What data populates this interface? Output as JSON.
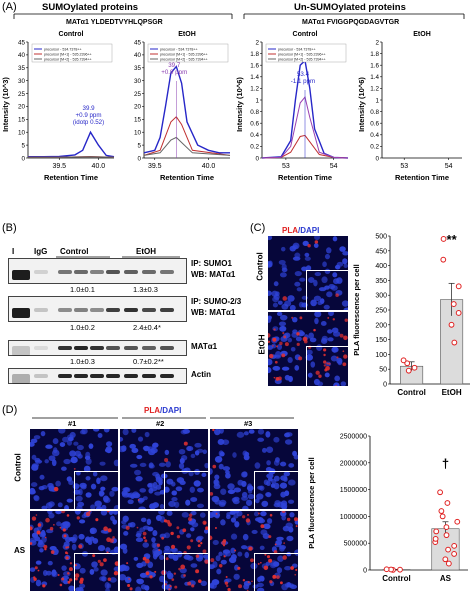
{
  "panel_A": {
    "letter": "(A)",
    "group_sumo": "SUMOylated proteins",
    "group_unsumo": "Un-SUMOylated proteins",
    "peptide_sumo": "MATα1 YLDEDTVYHLQPSGR",
    "peptide_unsumo": "MATα1 FVIGGPQGDAGVTGR",
    "ylabel_e3": "Intensity (10^3)",
    "ylabel_e6": "Intensity (10^6)",
    "xlabel": "Retention Time",
    "legend": [
      "precursor - 534.7378++",
      "precursor [M+1] - 535.2396++",
      "precursor [M+2] - 535.7394++"
    ],
    "chart_data": [
      {
        "type": "line",
        "title": "Control",
        "xlim": [
          39.1,
          40.2
        ],
        "ylim": [
          0,
          45
        ],
        "xticks": [
          "39.5",
          "40.0"
        ],
        "yticks": [
          "0",
          "5",
          "10",
          "15",
          "20",
          "25",
          "30",
          "35",
          "40",
          "45"
        ],
        "annotation": [
          "39.9",
          "+0.9 ppm",
          "(idotp 0.52)"
        ],
        "series": [
          {
            "color": "#2727c8",
            "x": [
              39.1,
              39.3,
              39.5,
              39.7,
              39.8,
              39.9,
              40.0,
              40.1,
              40.2
            ],
            "y": [
              0.5,
              0.5,
              0.6,
              1.2,
              3.0,
              10.0,
              5.0,
              1.0,
              0.5
            ]
          },
          {
            "color": "#c03030",
            "x": [
              39.1,
              39.5,
              39.9,
              40.2
            ],
            "y": [
              0.3,
              0.3,
              0.6,
              0.3
            ]
          },
          {
            "color": "#666666",
            "x": [
              39.1,
              39.5,
              39.9,
              40.2
            ],
            "y": [
              0.3,
              0.3,
              0.5,
              0.3
            ]
          }
        ]
      },
      {
        "type": "line",
        "title": "EtOH",
        "xlim": [
          39.4,
          40.2
        ],
        "ylim": [
          0,
          45
        ],
        "xticks": [
          "39.5",
          "40.0"
        ],
        "yticks": [
          "0",
          "5",
          "10",
          "15",
          "20",
          "25",
          "30",
          "35",
          "40",
          "45"
        ],
        "annotation": [
          "39.7",
          "+0.9 ppm"
        ],
        "series": [
          {
            "color": "#2727c8",
            "x": [
              39.4,
              39.5,
              39.55,
              39.6,
              39.65,
              39.7,
              39.75,
              39.8,
              39.9,
              40.0,
              40.1,
              40.2
            ],
            "y": [
              2,
              3,
              8,
              20,
              33,
              35.5,
              29,
              14,
              5,
              3,
              2,
              2
            ]
          },
          {
            "color": "#c03030",
            "x": [
              39.4,
              39.55,
              39.65,
              39.7,
              39.75,
              39.85,
              40.2
            ],
            "y": [
              1,
              3,
              14,
              16,
              13,
              3,
              1
            ]
          },
          {
            "color": "#666666",
            "x": [
              39.4,
              39.55,
              39.65,
              39.7,
              39.75,
              39.85,
              40.2
            ],
            "y": [
              1,
              2,
              7,
              8,
              6,
              2,
              1
            ]
          }
        ]
      },
      {
        "type": "line",
        "title": "Control",
        "xlim": [
          52.5,
          54.3
        ],
        "ylim": [
          0,
          2.0
        ],
        "xticks": [
          "53",
          "54"
        ],
        "yticks": [
          "0",
          "0.2",
          "0.4",
          "0.6",
          "0.8",
          "1",
          "1.2",
          "1.4",
          "1.6",
          "1.8",
          "2"
        ],
        "annotation": [
          "53.4",
          "-1.1 ppm"
        ],
        "series": [
          {
            "color": "#2727c8",
            "x": [
              52.5,
              52.9,
              53.1,
              53.2,
              53.3,
              53.4,
              53.5,
              53.6,
              53.8,
              54.0,
              54.3
            ],
            "y": [
              0,
              0.02,
              0.3,
              1.0,
              1.6,
              1.68,
              1.2,
              0.5,
              0.08,
              0.01,
              0
            ]
          },
          {
            "color": "#c03030",
            "x": [
              52.5,
              52.9,
              53.1,
              53.3,
              53.4,
              53.5,
              53.7,
              54.0,
              54.3
            ],
            "y": [
              0,
              0.01,
              0.1,
              0.37,
              0.39,
              0.28,
              0.06,
              0.01,
              0
            ]
          },
          {
            "color": "#9a40b0",
            "x": [
              52.5,
              52.9,
              53.1,
              53.3,
              53.4,
              53.5,
              53.7,
              54.0,
              54.3
            ],
            "y": [
              0,
              0.01,
              0.2,
              0.95,
              1.05,
              0.7,
              0.1,
              0.01,
              0
            ]
          }
        ]
      },
      {
        "type": "line",
        "title": "EtOH",
        "xlim": [
          52.5,
          54.3
        ],
        "ylim": [
          0,
          2.0
        ],
        "xticks": [
          "53",
          "54"
        ],
        "yticks": [
          "0",
          "0.2",
          "0.4",
          "0.6",
          "0.8",
          "1",
          "1.2",
          "1.4",
          "1.6",
          "1.8",
          "2"
        ],
        "annotation": [],
        "series": []
      }
    ]
  },
  "panel_B": {
    "letter": "(B)",
    "lane_I": "I",
    "lane_IgG": "IgG",
    "group_control": "Control",
    "group_etoh": "EtOH",
    "blots": [
      {
        "label1": "IP: SUMO1",
        "label2": "WB: MATα1",
        "quant_control": "1.0±0.1",
        "quant_etoh": "1.3±0.3"
      },
      {
        "label1": "IP: SUMO-2/3",
        "label2": "WB: MATα1",
        "quant_control": "1.0±0.2",
        "quant_etoh": "2.4±0.4*"
      },
      {
        "label1": "MATα1",
        "label2": "",
        "quant_control": "1.0±0.3",
        "quant_etoh": "0.7±0.2**"
      },
      {
        "label1": "Actin",
        "label2": "",
        "quant_control": "",
        "quant_etoh": ""
      }
    ]
  },
  "panel_C": {
    "letter": "(C)",
    "pla": "PLA",
    "slash": "/",
    "dapi": "DAPI",
    "row_control": "Control",
    "row_etoh": "EtOH",
    "chart_data": {
      "type": "bar",
      "categories": [
        "Control",
        "EtOH"
      ],
      "values": [
        60,
        285
      ],
      "errors": [
        15,
        55
      ],
      "points": [
        [
          45,
          55,
          70,
          80
        ],
        [
          140,
          200,
          240,
          270,
          330,
          420,
          490
        ]
      ],
      "ylabel": "PLA fluorescence per cell",
      "ylim": [
        0,
        500
      ],
      "yticks": [
        "0",
        "50",
        "100",
        "150",
        "200",
        "250",
        "300",
        "350",
        "400",
        "450",
        "500"
      ],
      "significance": "**"
    }
  },
  "panel_D": {
    "letter": "(D)",
    "pla": "PLA",
    "slash": "/",
    "dapi": "DAPI",
    "cols": [
      "#1",
      "#2",
      "#3"
    ],
    "row_control": "Control",
    "row_as": "AS",
    "chart_data": {
      "type": "bar",
      "categories": [
        "Control",
        "AS"
      ],
      "values": [
        8000,
        770000
      ],
      "errors": [
        3000,
        130000
      ],
      "points": [
        [
          2000,
          6000,
          10000,
          14000
        ],
        [
          120000,
          200000,
          300000,
          380000,
          450000,
          520000,
          580000,
          650000,
          720000,
          800000,
          900000,
          1000000,
          1100000,
          1250000,
          1450000
        ]
      ],
      "ylabel": "PLA fluorescence per cell",
      "ylim": [
        0,
        2500000
      ],
      "yticks": [
        "0",
        "500000",
        "1000000",
        "1500000",
        "2000000",
        "2500000"
      ],
      "significance": "†"
    }
  },
  "colors": {
    "blue": "#2727c8",
    "red": "#c03030",
    "purple": "#9a40b0",
    "micro_bg": "#06063a",
    "nucleus": "#2f43d8",
    "pla_red": "#e23030",
    "point_red": "#e02020"
  }
}
